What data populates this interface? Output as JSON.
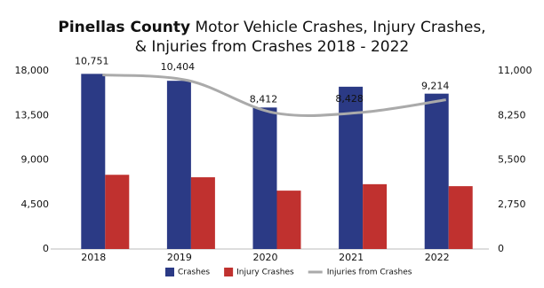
{
  "chart_data": {
    "type": "bar_line",
    "title": {
      "bold": "Pinellas County",
      "lines": [
        "Motor Vehicle Crashes, Injury Crashes,",
        "& Injuries from Crashes 2018 - 2022"
      ]
    },
    "categories": [
      "2018",
      "2019",
      "2020",
      "2021",
      "2022"
    ],
    "series": [
      {
        "name": "Crashes",
        "color": "#2b3a85",
        "type": "bar",
        "values": [
          17700,
          17000,
          14300,
          16400,
          15700
        ]
      },
      {
        "name": "Injury Crashes",
        "color": "#c0312f",
        "type": "bar",
        "values": [
          7500,
          7250,
          5900,
          6550,
          6350
        ]
      },
      {
        "name": "Injuries from Crashes",
        "color": "#aaaaaa",
        "type": "line",
        "axis": "y2",
        "values": [
          10751,
          10404,
          8412,
          8428,
          9214
        ],
        "value_labels": [
          "10,751",
          "10,404",
          "8,412",
          "8,428",
          "9,214"
        ]
      }
    ],
    "ylim": [
      0,
      18000
    ],
    "yticks": [
      0,
      {
        "value": 4500,
        "label": "4,500"
      },
      {
        "value": 9000,
        "label": "9,000"
      },
      {
        "value": 13500,
        "label": "13,500"
      },
      {
        "value": 18000,
        "label": "18,000"
      }
    ],
    "y2lim": [
      0,
      11000
    ],
    "y2ticks": [
      0,
      {
        "value": 2750,
        "label": "2,750"
      },
      {
        "value": 5500,
        "label": "5,500"
      },
      {
        "value": 8250,
        "label": "8,250"
      },
      {
        "value": 11000,
        "label": "11,000"
      }
    ],
    "legend": "bottom"
  }
}
